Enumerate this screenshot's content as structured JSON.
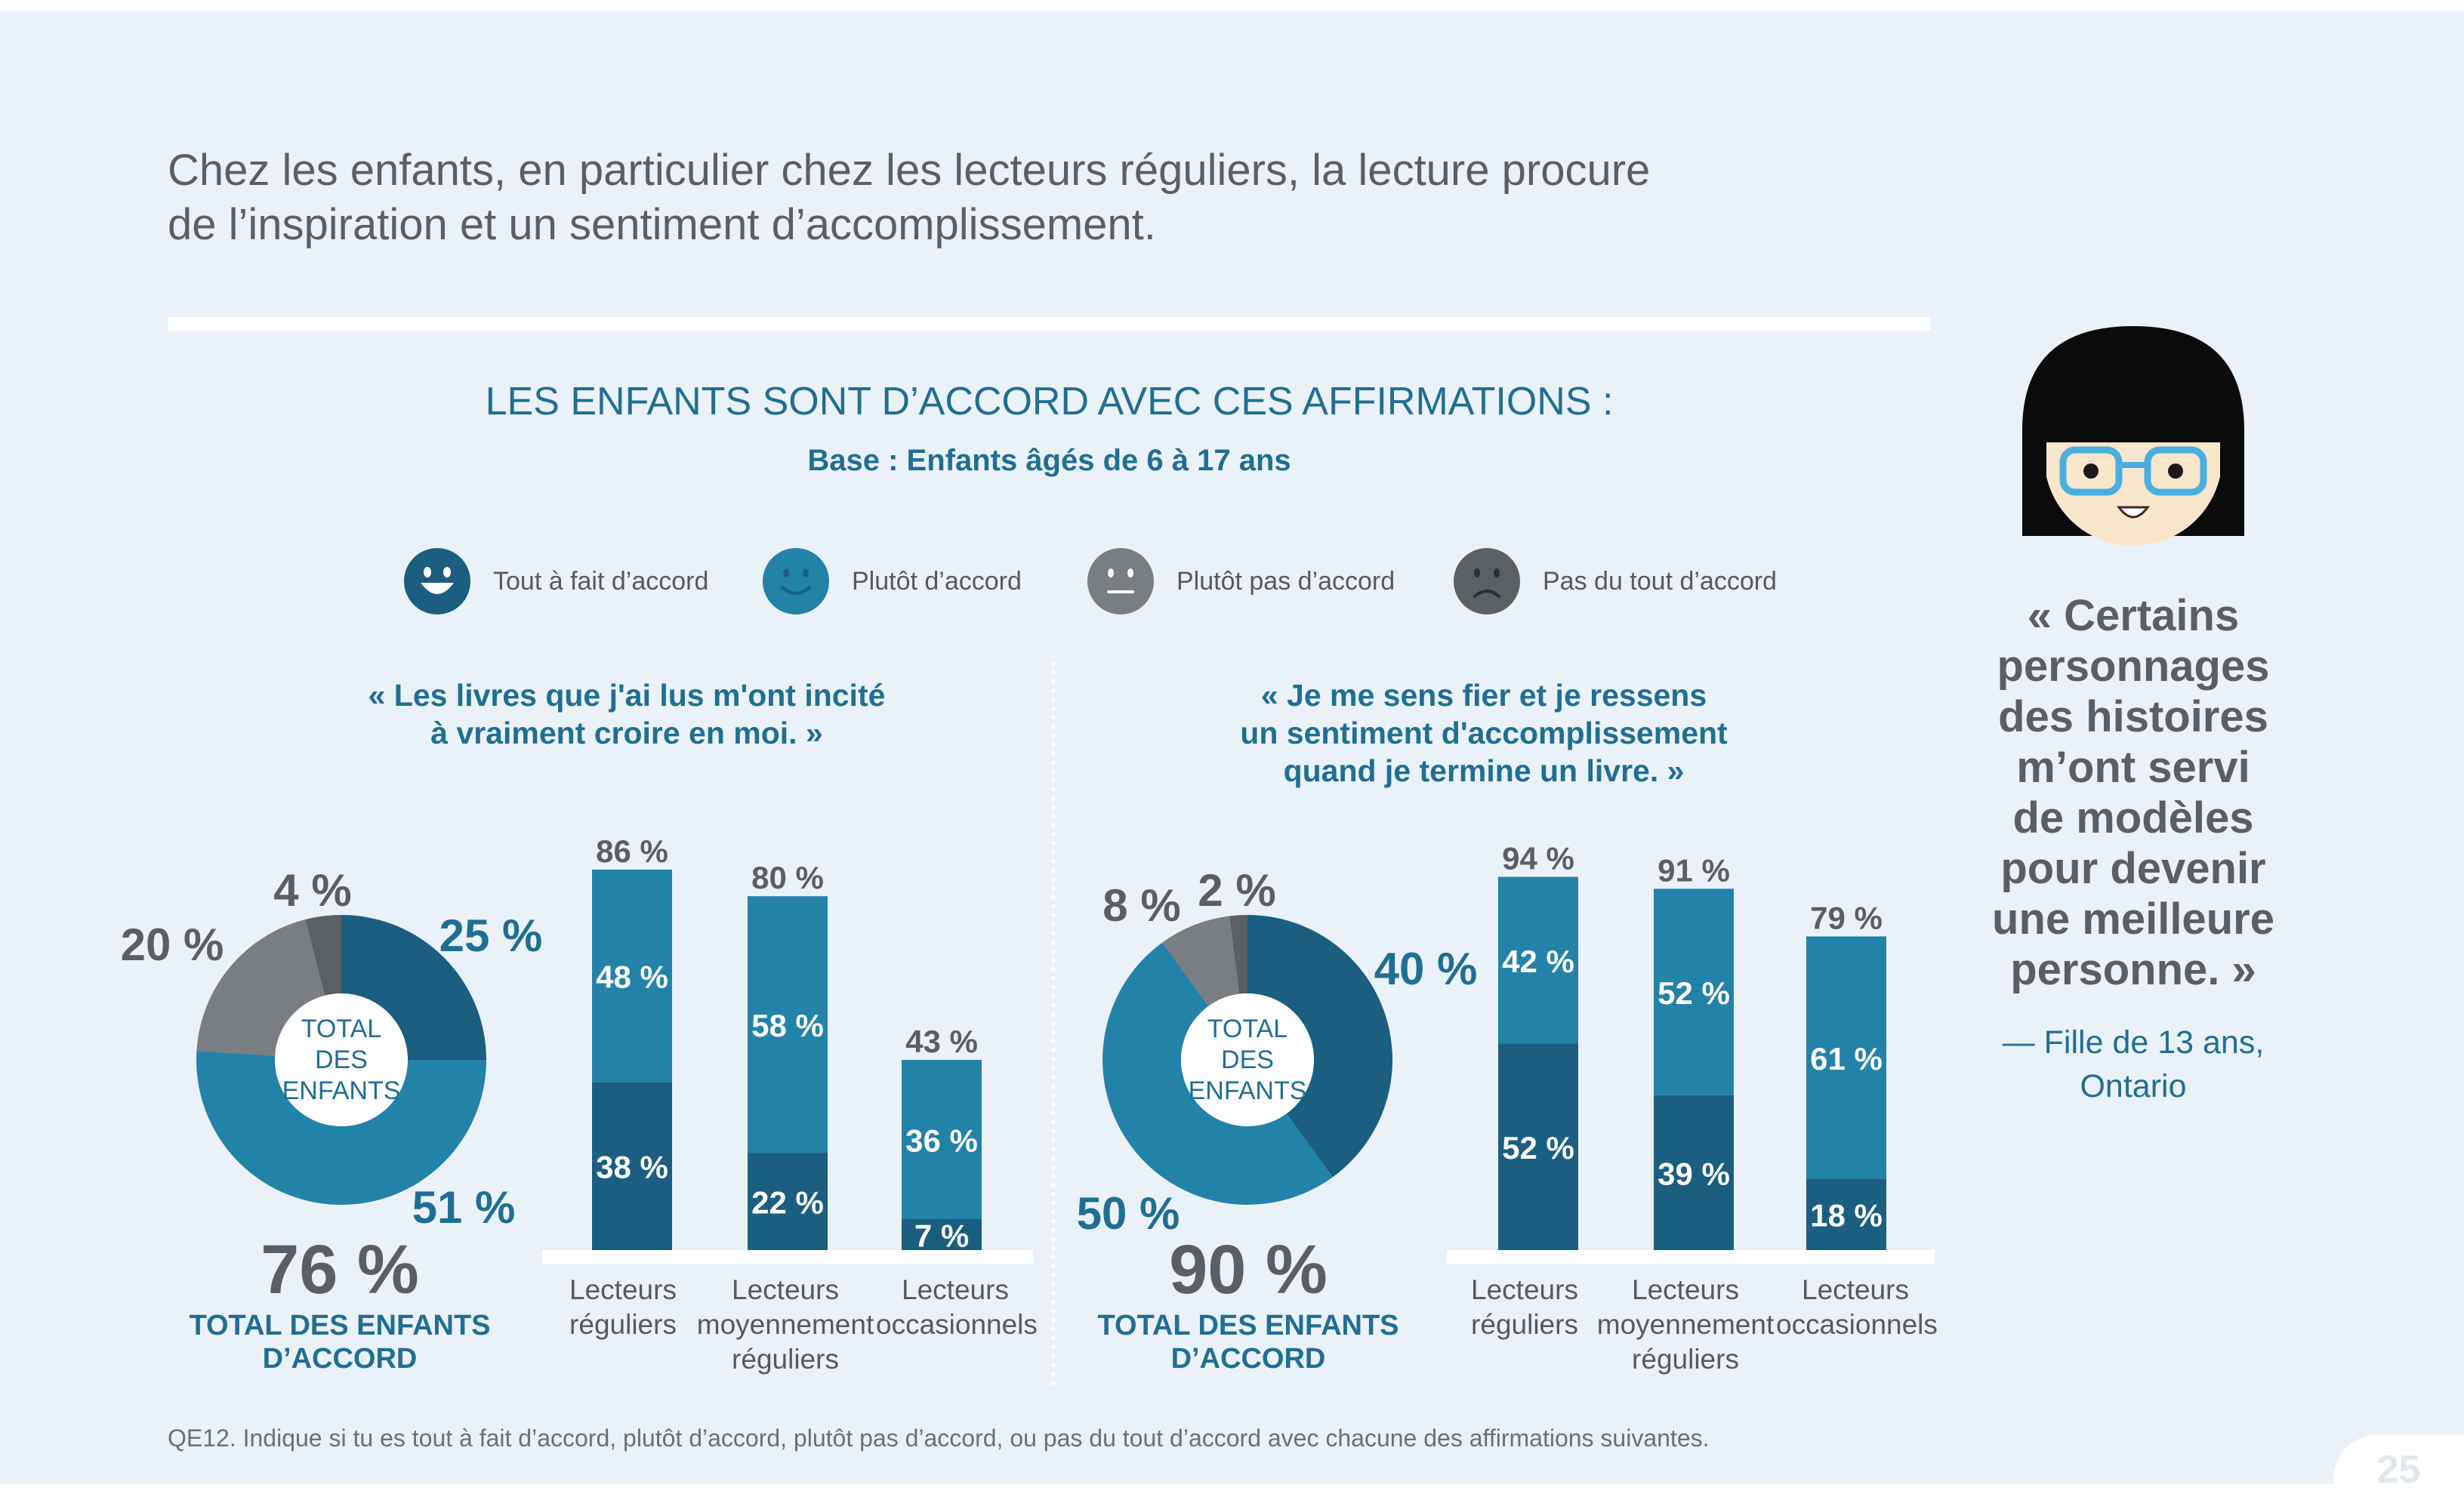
{
  "headline_line1": "Chez les enfants, en particulier chez les lecteurs réguliers, la lecture procure",
  "headline_line2": "de l’inspiration et un sentiment d’accomplissement.",
  "chart_title": "LES ENFANTS SONT D’ACCORD AVEC CES AFFIRMATIONS :",
  "chart_subtitle": "Base : Enfants âgés de 6 à 17 ans",
  "legend": [
    {
      "label": "Tout à fait d’accord",
      "color": "#1b5e80",
      "icon": "big-smile-face-icon"
    },
    {
      "label": "Plutôt d’accord",
      "color": "#2382a8",
      "icon": "smile-face-icon"
    },
    {
      "label": "Plutôt pas d’accord",
      "color": "#7a7d82",
      "icon": "neutral-face-icon"
    },
    {
      "label": "Pas du tout d’accord",
      "color": "#5c5f63",
      "icon": "frown-face-icon"
    }
  ],
  "colors": {
    "tout_a_fait": "#1b5e80",
    "plutot": "#2382a8",
    "plutot_pas": "#7a7d82",
    "pas_du_tout": "#5c5f63",
    "accent_text": "#1f6f93",
    "gray_text": "#5a5f66",
    "background": "#eaf1f8"
  },
  "donut_center_label": [
    "TOTAL",
    "DES",
    "ENFANTS"
  ],
  "chart_data": [
    {
      "type": "pie",
      "quote_lines": [
        "« Les livres que j'ai lus m'ont incité",
        "à vraiment croire en moi. »"
      ],
      "categories": [
        "Tout à fait d’accord",
        "Plutôt d’accord",
        "Plutôt pas d’accord",
        "Pas du tout d’accord"
      ],
      "values": [
        25,
        51,
        20,
        4
      ],
      "value_labels": [
        "25 %",
        "51 %",
        "20 %",
        "4 %"
      ],
      "total_value": "76 %",
      "total_label_lines": [
        "TOTAL DES ENFANTS",
        "D’ACCORD"
      ]
    },
    {
      "type": "bar",
      "stacked": true,
      "categories": [
        [
          "Lecteurs",
          "réguliers"
        ],
        [
          "Lecteurs",
          "moyennement",
          "réguliers"
        ],
        [
          "Lecteurs",
          "occasionnels"
        ]
      ],
      "series": [
        {
          "name": "Tout à fait d’accord",
          "values": [
            38,
            22,
            7
          ],
          "labels": [
            "38 %",
            "22 %",
            "7 %"
          ]
        },
        {
          "name": "Plutôt d’accord",
          "values": [
            48,
            58,
            36
          ],
          "labels": [
            "48 %",
            "58 %",
            "36 %"
          ]
        }
      ],
      "totals": [
        86,
        80,
        43
      ],
      "total_labels": [
        "86 %",
        "80 %",
        "43 %"
      ],
      "ylim": [
        0,
        100
      ]
    },
    {
      "type": "pie",
      "quote_lines": [
        "« Je me sens fier et je ressens",
        "un sentiment d'accomplissement",
        "quand je termine un livre. »"
      ],
      "categories": [
        "Tout à fait d’accord",
        "Plutôt d’accord",
        "Plutôt pas d’accord",
        "Pas du tout d’accord"
      ],
      "values": [
        40,
        50,
        8,
        2
      ],
      "value_labels": [
        "40 %",
        "50 %",
        "8 %",
        "2 %"
      ],
      "total_value": "90 %",
      "total_label_lines": [
        "TOTAL DES ENFANTS",
        "D’ACCORD"
      ]
    },
    {
      "type": "bar",
      "stacked": true,
      "categories": [
        [
          "Lecteurs",
          "réguliers"
        ],
        [
          "Lecteurs",
          "moyennement",
          "réguliers"
        ],
        [
          "Lecteurs",
          "occasionnels"
        ]
      ],
      "series": [
        {
          "name": "Tout à fait d’accord",
          "values": [
            52,
            39,
            18
          ],
          "labels": [
            "52 %",
            "39 %",
            "18 %"
          ]
        },
        {
          "name": "Plutôt d’accord",
          "values": [
            42,
            52,
            61
          ],
          "labels": [
            "42 %",
            "52 %",
            "61 %"
          ]
        }
      ],
      "totals": [
        94,
        91,
        79
      ],
      "total_labels": [
        "94 %",
        "91 %",
        "79 %"
      ],
      "ylim": [
        0,
        100
      ]
    }
  ],
  "side_quote_lines": [
    "« Certains",
    "personnages",
    "des histoires",
    "m’ont servi",
    "de modèles",
    "pour devenir",
    "une meilleure",
    "personne. »"
  ],
  "attribution_lines": [
    "— Fille de 13 ans,",
    "Ontario"
  ],
  "footnote": "QE12. Indique si tu es tout à fait d’accord, plutôt d’accord, plutôt pas d’accord, ou pas du tout d’accord avec chacune des affirmations suivantes.",
  "page_number": "25"
}
